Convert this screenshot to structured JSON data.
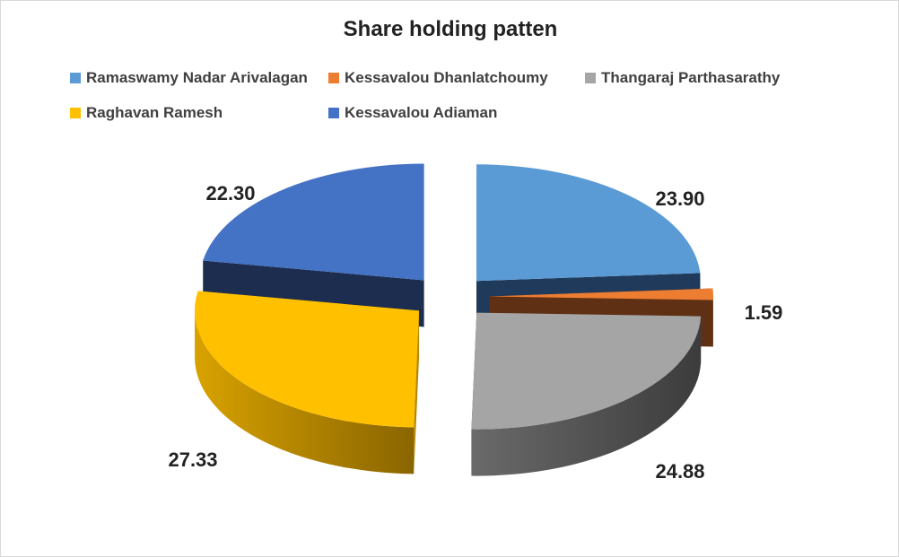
{
  "chart_data": {
    "type": "pie",
    "title": "Share holding patten",
    "legend_position": "top",
    "exploded": true,
    "three_d": true,
    "series": [
      {
        "name": "Ramaswamy Nadar Arivalagan",
        "value": 23.9,
        "label": "23.90",
        "color": "#5b9bd5",
        "side": "#1f3a5a"
      },
      {
        "name": "Kessavalou Dhanlatchoumy",
        "value": 1.59,
        "label": "1.59",
        "color": "#ed7d31",
        "side": "#603014"
      },
      {
        "name": "Thangaraj Parthasarathy",
        "value": 24.88,
        "label": "24.88",
        "color": "#a5a5a5",
        "side": "#4a4a4a"
      },
      {
        "name": "Raghavan Ramesh",
        "value": 27.33,
        "label": "27.33",
        "color": "#ffc000",
        "side": "#b68600"
      },
      {
        "name": "Kessavalou Adiaman",
        "value": 22.3,
        "label": "22.30",
        "color": "#4472c4",
        "side": "#1c2d4f"
      }
    ]
  }
}
